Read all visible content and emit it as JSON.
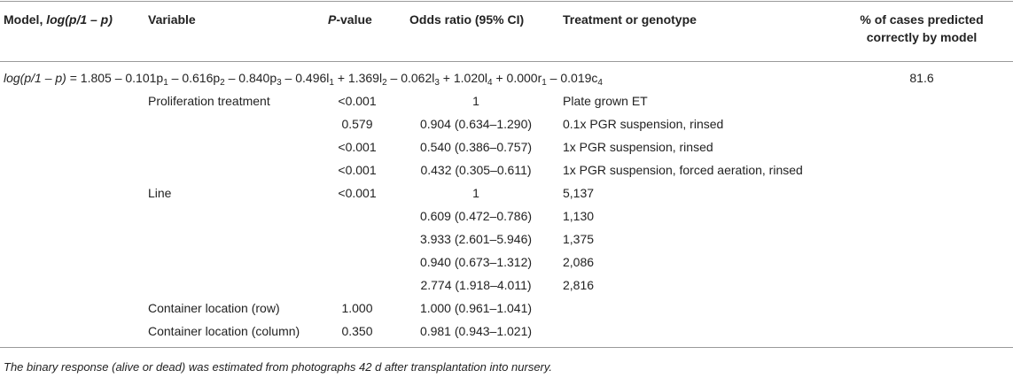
{
  "header": {
    "model_prefix": "Model, ",
    "model_expr": "log(p/1 – p)",
    "variable": "Variable",
    "pvalue_italic": "P",
    "pvalue_rest": "-value",
    "odds_ratio": "Odds ratio (95% CI)",
    "treatment": "Treatment or genotype",
    "cases_line1": "% of cases predicted",
    "cases_line2": "correctly by model"
  },
  "model": {
    "lhs": "log(p/1 – p)",
    "terms": [
      {
        "text": " = 1.805 – 0.101p",
        "sub": "1"
      },
      {
        "text": " – 0.616p",
        "sub": "2"
      },
      {
        "text": " – 0.840p",
        "sub": "3"
      },
      {
        "text": " – 0.496l",
        "sub": "1"
      },
      {
        "text": " + 1.369l",
        "sub": "2"
      },
      {
        "text": " – 0.062l",
        "sub": "3"
      },
      {
        "text": " + 1.020l",
        "sub": "4"
      },
      {
        "text": " + 0.000r",
        "sub": "1"
      },
      {
        "text": " – 0.019c",
        "sub": "4"
      }
    ],
    "percent_correct": "81.6"
  },
  "rows": [
    {
      "variable": "Proliferation treatment",
      "pvalue": "<0.001",
      "odds": "1",
      "treatment": "Plate grown ET"
    },
    {
      "variable": "",
      "pvalue": "0.579",
      "odds": "0.904 (0.634–1.290)",
      "treatment": "0.1x PGR suspension, rinsed"
    },
    {
      "variable": "",
      "pvalue": "<0.001",
      "odds": "0.540 (0.386–0.757)",
      "treatment": "1x PGR suspension, rinsed"
    },
    {
      "variable": "",
      "pvalue": "<0.001",
      "odds": "0.432 (0.305–0.611)",
      "treatment": "1x PGR suspension, forced aeration, rinsed"
    },
    {
      "variable": "Line",
      "pvalue": "<0.001",
      "odds": "1",
      "treatment": "5,137"
    },
    {
      "variable": "",
      "pvalue": "",
      "odds": "0.609 (0.472–0.786)",
      "treatment": "1,130"
    },
    {
      "variable": "",
      "pvalue": "",
      "odds": "3.933 (2.601–5.946)",
      "treatment": "1,375"
    },
    {
      "variable": "",
      "pvalue": "",
      "odds": "0.940 (0.673–1.312)",
      "treatment": "2,086"
    },
    {
      "variable": "",
      "pvalue": "",
      "odds": "2.774 (1.918–4.011)",
      "treatment": "2,816"
    },
    {
      "variable": "Container location (row)",
      "pvalue": "1.000",
      "odds": "1.000 (0.961–1.041)",
      "treatment": ""
    },
    {
      "variable": "Container location (column)",
      "pvalue": "0.350",
      "odds": "0.981 (0.943–1.021)",
      "treatment": ""
    }
  ],
  "footnote": "The binary response (alive or dead) was estimated from photographs 42 d after transplantation into nursery."
}
